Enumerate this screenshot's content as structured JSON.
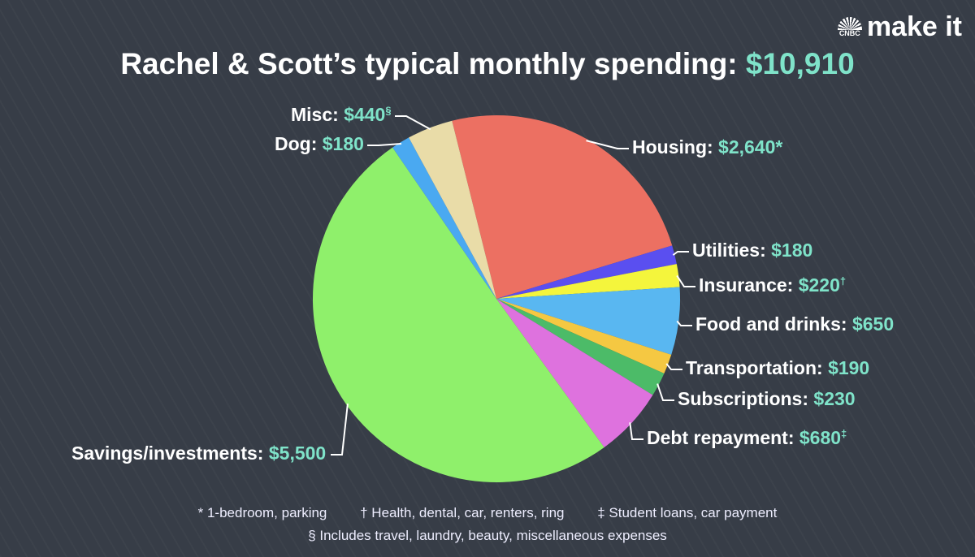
{
  "title": {
    "text": "Rachel & Scott’s typical monthly spending:",
    "total": "$10,910"
  },
  "logo": {
    "brand": "CNBC",
    "text": "make it"
  },
  "chart_data": {
    "type": "pie",
    "title": "Rachel & Scott’s typical monthly spending: $10,910",
    "slices": [
      {
        "label": "Housing",
        "value": 2640,
        "display": "$2,640",
        "mark": "*",
        "color": "#ec7062"
      },
      {
        "label": "Utilities",
        "value": 180,
        "display": "$180",
        "mark": "",
        "color": "#5a4ff0"
      },
      {
        "label": "Insurance",
        "value": 220,
        "display": "$220",
        "mark": "†",
        "color": "#f4f53c"
      },
      {
        "label": "Food and drinks",
        "value": 650,
        "display": "$650",
        "mark": "",
        "color": "#59b7f1"
      },
      {
        "label": "Transportation",
        "value": 190,
        "display": "$190",
        "mark": "",
        "color": "#f5c842"
      },
      {
        "label": "Subscriptions",
        "value": 230,
        "display": "$230",
        "mark": "",
        "color": "#4cbb68"
      },
      {
        "label": "Debt repayment",
        "value": 680,
        "display": "$680",
        "mark": "‡",
        "color": "#de72de"
      },
      {
        "label": "Savings/investments",
        "value": 5500,
        "display": "$5,500",
        "mark": "",
        "color": "#8ff06b"
      },
      {
        "label": "Dog",
        "value": 180,
        "display": "$180",
        "mark": "",
        "color": "#4aa9f1"
      },
      {
        "label": "Misc",
        "value": 440,
        "display": "$440",
        "mark": "§",
        "color": "#e9dca8"
      }
    ]
  },
  "footnotes": [
    "* 1-bedroom, parking",
    "† Health, dental, car, renters, ring",
    "‡ Student loans, car payment",
    "§ Includes travel, laundry, beauty, miscellaneous expenses"
  ]
}
